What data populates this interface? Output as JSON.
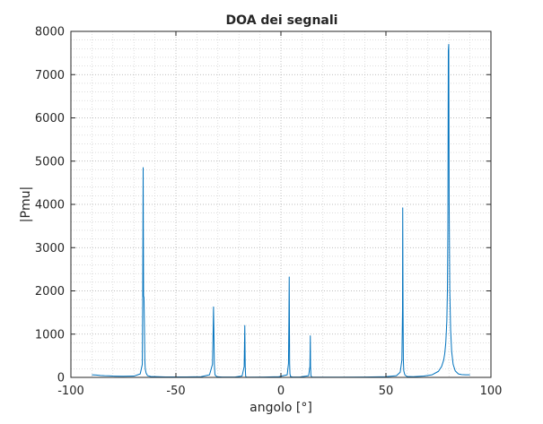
{
  "chart_data": {
    "type": "line",
    "title": "DOA dei segnali",
    "xlabel": "angolo [°]",
    "ylabel": "|Pmu|",
    "xlim": [
      -100,
      100
    ],
    "ylim": [
      0,
      8000
    ],
    "x_ticks": [
      -100,
      -50,
      0,
      50,
      100
    ],
    "y_ticks": [
      0,
      1000,
      2000,
      3000,
      4000,
      5000,
      6000,
      7000,
      8000
    ],
    "x_tick_labels": [
      "-100",
      "-50",
      "0",
      "50",
      "100"
    ],
    "y_tick_labels": [
      "0",
      "1000",
      "2000",
      "3000",
      "4000",
      "5000",
      "6000",
      "7000",
      "8000"
    ],
    "grid": true,
    "minor_grid": true,
    "line_color": "#0072bd",
    "series": [
      {
        "x": [
          -90,
          -88,
          -86,
          -84,
          -82,
          -80,
          -75,
          -70,
          -67,
          -66,
          -65.8,
          -65.6,
          -65.4,
          -65.2,
          -65,
          -64.8,
          -64.6,
          -64.2,
          -63.5,
          -62,
          -55,
          -45,
          -38,
          -34,
          -32.6,
          -32.3,
          -32.1,
          -31.9,
          -31.7,
          -31.4,
          -30.5,
          -28,
          -22,
          -18.5,
          -17.5,
          -17.2,
          -17,
          -16.8,
          -16.5,
          -15,
          -8,
          -1,
          3,
          3.6,
          3.8,
          3.95,
          4.05,
          4.15,
          4.3,
          4.6,
          5.5,
          9,
          13.2,
          13.8,
          14.0,
          14.1,
          14.3,
          14.7,
          16,
          25,
          40,
          50,
          55,
          56.8,
          57.6,
          57.9,
          58.0,
          58.15,
          58.3,
          58.5,
          59,
          60,
          63,
          68,
          72,
          75,
          76.5,
          77.5,
          78,
          78.5,
          79,
          79.3,
          79.5,
          79.7,
          79.9,
          80.1,
          80.4,
          80.8,
          81.3,
          82,
          83,
          84.5,
          86,
          88,
          90
        ],
        "y": [
          60,
          55,
          45,
          38,
          35,
          30,
          25,
          30,
          80,
          300,
          1880,
          4850,
          1880,
          1850,
          1200,
          400,
          200,
          100,
          40,
          20,
          10,
          10,
          15,
          60,
          300,
          1000,
          1630,
          1000,
          300,
          60,
          15,
          8,
          8,
          30,
          250,
          1200,
          250,
          30,
          8,
          5,
          8,
          15,
          60,
          320,
          1300,
          2320,
          1250,
          320,
          80,
          20,
          8,
          8,
          40,
          250,
          960,
          250,
          40,
          8,
          5,
          5,
          8,
          15,
          40,
          120,
          400,
          1550,
          3920,
          1550,
          400,
          150,
          60,
          20,
          15,
          30,
          60,
          140,
          250,
          400,
          550,
          800,
          1300,
          2100,
          3400,
          7550,
          7700,
          4100,
          2000,
          1100,
          600,
          300,
          150,
          80,
          65,
          60,
          60
        ]
      }
    ]
  }
}
